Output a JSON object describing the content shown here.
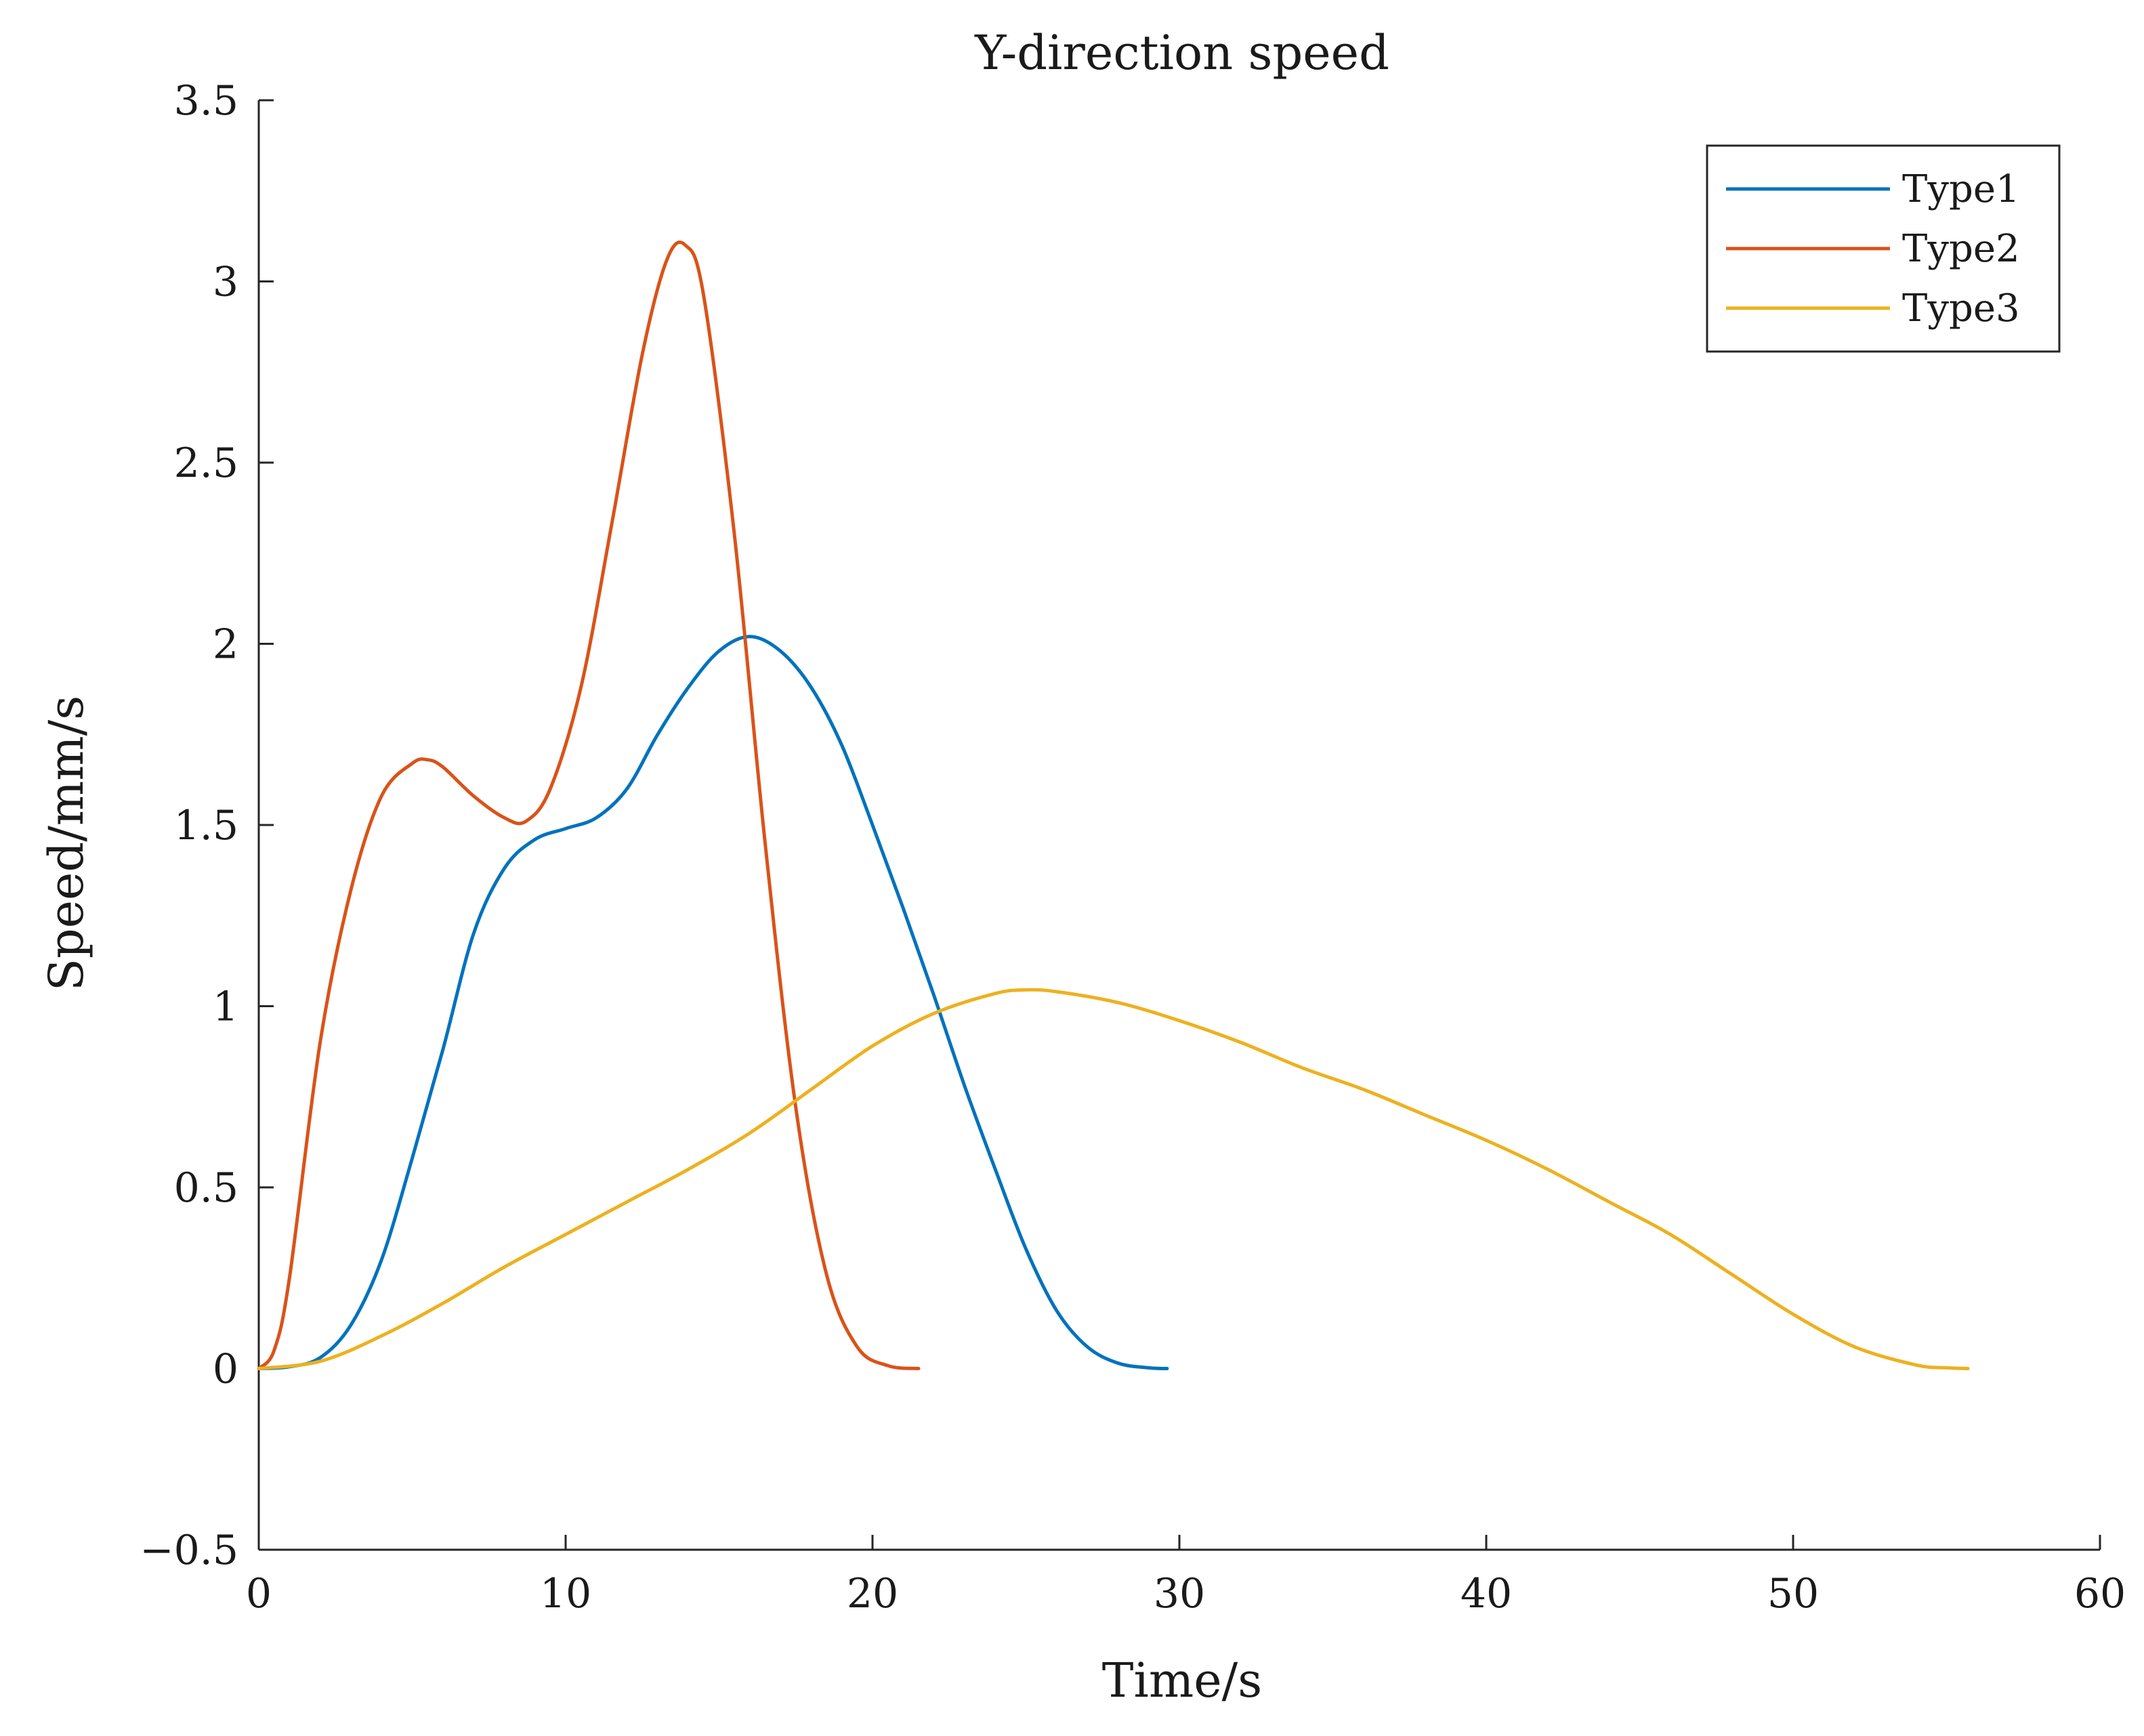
{
  "chart_data": {
    "type": "line",
    "title": "Y-direction speed",
    "xlabel": "Time/s",
    "ylabel": "Speed/mm/s",
    "xlim": [
      0,
      60
    ],
    "ylim": [
      -0.5,
      3.5
    ],
    "xticks": [
      0,
      10,
      20,
      30,
      40,
      50,
      60
    ],
    "yticks": [
      -0.5,
      0,
      0.5,
      1,
      1.5,
      2,
      2.5,
      3,
      3.5
    ],
    "xtick_labels": [
      "0",
      "10",
      "20",
      "30",
      "40",
      "50",
      "60"
    ],
    "ytick_labels": [
      "−0.5",
      "0",
      "0.5",
      "1",
      "1.5",
      "2",
      "2.5",
      "3",
      "3.5"
    ],
    "grid": false,
    "legend_position": "top-right",
    "series": [
      {
        "name": "Type1",
        "color": "#0072BD",
        "x": [
          0,
          1,
          2,
          3,
          4,
          5,
          6,
          7,
          8,
          9,
          10,
          11,
          12,
          13,
          14,
          15,
          16,
          17,
          18,
          19,
          20,
          21,
          22,
          23,
          24,
          25,
          26,
          27,
          28,
          29,
          29.6
        ],
        "y": [
          0,
          0.005,
          0.03,
          0.12,
          0.3,
          0.58,
          0.88,
          1.2,
          1.38,
          1.46,
          1.49,
          1.52,
          1.6,
          1.75,
          1.88,
          1.98,
          2.02,
          1.98,
          1.88,
          1.72,
          1.5,
          1.27,
          1.03,
          0.78,
          0.55,
          0.33,
          0.16,
          0.06,
          0.015,
          0.002,
          0
        ]
      },
      {
        "name": "Type2",
        "color": "#D95319",
        "x": [
          0,
          0.5,
          1,
          2,
          3,
          4,
          5,
          5.5,
          6,
          7,
          8,
          8.7,
          9.5,
          10.5,
          11.5,
          12.5,
          13.3,
          13.9,
          14.5,
          15.5,
          16.5,
          17.5,
          18.5,
          19.5,
          20.5,
          21.5
        ],
        "y": [
          0,
          0.05,
          0.25,
          0.9,
          1.32,
          1.58,
          1.67,
          1.68,
          1.66,
          1.58,
          1.52,
          1.51,
          1.6,
          1.88,
          2.33,
          2.8,
          3.06,
          3.1,
          2.96,
          2.3,
          1.45,
          0.72,
          0.26,
          0.06,
          0.008,
          0
        ]
      },
      {
        "name": "Type3",
        "color": "#EDB120",
        "x": [
          0,
          2,
          4,
          6,
          8,
          10,
          12,
          14,
          16,
          18,
          20,
          22,
          24,
          25,
          26,
          28,
          30,
          32,
          34,
          36,
          38,
          40,
          42,
          44,
          46,
          48,
          50,
          52,
          54,
          55,
          55.7
        ],
        "y": [
          0,
          0.02,
          0.09,
          0.18,
          0.28,
          0.37,
          0.46,
          0.55,
          0.65,
          0.77,
          0.89,
          0.98,
          1.035,
          1.045,
          1.04,
          1.01,
          0.96,
          0.9,
          0.83,
          0.77,
          0.7,
          0.63,
          0.55,
          0.46,
          0.37,
          0.26,
          0.15,
          0.06,
          0.01,
          0.002,
          0
        ]
      }
    ]
  }
}
